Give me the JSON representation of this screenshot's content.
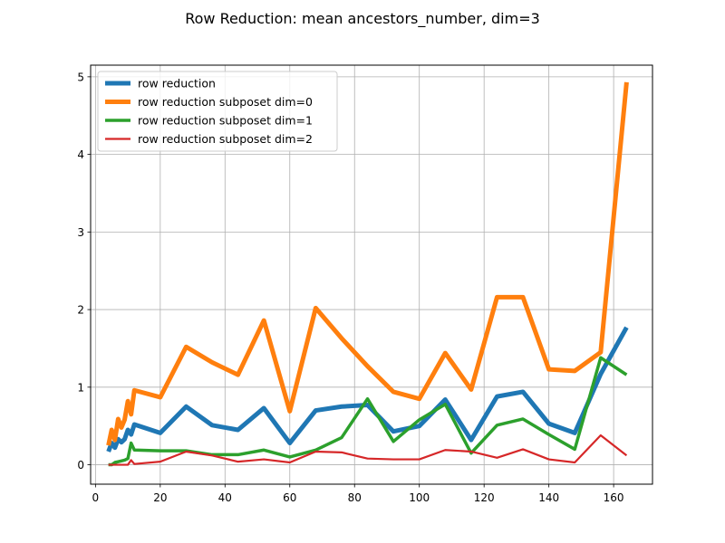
{
  "chart_data": {
    "type": "line",
    "title": "Row Reduction: mean ancestors_number, dim=3",
    "xlabel": "",
    "ylabel": "",
    "xlim": [
      -1.5,
      172
    ],
    "ylim": [
      -0.25,
      5.15
    ],
    "xticks": [
      0,
      20,
      40,
      60,
      80,
      100,
      120,
      140,
      160
    ],
    "yticks": [
      0,
      1,
      2,
      3,
      4,
      5
    ],
    "grid": true,
    "legend_position": "top-left",
    "series": [
      {
        "name": "row reduction",
        "color": "#1f77b4",
        "width": 5,
        "x": [
          4,
          5,
          6,
          7,
          8,
          9,
          10,
          11,
          12,
          20,
          28,
          36,
          44,
          52,
          60,
          68,
          76,
          84,
          92,
          100,
          108,
          116,
          124,
          132,
          140,
          148,
          156,
          164
        ],
        "y": [
          0.17,
          0.28,
          0.22,
          0.33,
          0.29,
          0.33,
          0.45,
          0.39,
          0.52,
          0.41,
          0.75,
          0.51,
          0.45,
          0.73,
          0.28,
          0.7,
          0.75,
          0.77,
          0.43,
          0.5,
          0.84,
          0.32,
          0.88,
          0.94,
          0.53,
          0.41,
          1.17,
          1.77
        ]
      },
      {
        "name": "row reduction subposet dim=0",
        "color": "#ff7f0e",
        "width": 5,
        "x": [
          4,
          5,
          6,
          7,
          8,
          9,
          10,
          11,
          12,
          20,
          28,
          36,
          44,
          52,
          60,
          68,
          76,
          84,
          92,
          100,
          108,
          116,
          124,
          132,
          140,
          148,
          156,
          164
        ],
        "y": [
          0.25,
          0.45,
          0.32,
          0.59,
          0.48,
          0.58,
          0.82,
          0.65,
          0.96,
          0.87,
          1.52,
          1.32,
          1.16,
          1.86,
          0.69,
          2.02,
          1.63,
          1.27,
          0.94,
          0.85,
          1.44,
          0.97,
          2.16,
          2.16,
          1.23,
          1.21,
          1.45,
          4.93
        ]
      },
      {
        "name": "row reduction subposet dim=1",
        "color": "#2ca02c",
        "width": 3.5,
        "x": [
          4,
          5,
          6,
          7,
          8,
          9,
          10,
          11,
          12,
          20,
          28,
          36,
          44,
          52,
          60,
          68,
          76,
          84,
          92,
          100,
          108,
          116,
          124,
          132,
          140,
          148,
          156,
          164
        ],
        "y": [
          0.0,
          0.0,
          0.03,
          0.04,
          0.05,
          0.06,
          0.08,
          0.28,
          0.19,
          0.18,
          0.18,
          0.13,
          0.13,
          0.19,
          0.1,
          0.19,
          0.35,
          0.85,
          0.3,
          0.58,
          0.78,
          0.15,
          0.51,
          0.59,
          0.39,
          0.2,
          1.38,
          1.16
        ]
      },
      {
        "name": "row reduction subposet dim=2",
        "color": "#d62728",
        "width": 2.2,
        "x": [
          4,
          5,
          6,
          7,
          8,
          9,
          10,
          11,
          12,
          20,
          28,
          36,
          44,
          52,
          60,
          68,
          76,
          84,
          92,
          100,
          108,
          116,
          124,
          132,
          140,
          148,
          156,
          164
        ],
        "y": [
          0.0,
          0.0,
          0.0,
          0.0,
          0.0,
          0.0,
          0.0,
          0.06,
          0.01,
          0.04,
          0.17,
          0.12,
          0.04,
          0.07,
          0.03,
          0.17,
          0.16,
          0.08,
          0.07,
          0.07,
          0.19,
          0.17,
          0.09,
          0.2,
          0.07,
          0.03,
          0.38,
          0.12
        ]
      }
    ]
  }
}
